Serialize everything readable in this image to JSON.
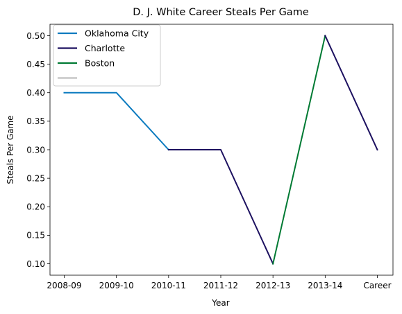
{
  "chart_data": {
    "type": "line",
    "title": "D. J. White Career Steals Per Game",
    "xlabel": "Year",
    "ylabel": "Steals Per Game",
    "categories": [
      "2008-09",
      "2009-10",
      "2010-11",
      "2011-12",
      "2012-13",
      "2013-14",
      "Career"
    ],
    "yticks": [
      "0.10",
      "0.15",
      "0.20",
      "0.25",
      "0.30",
      "0.35",
      "0.40",
      "0.45",
      "0.50"
    ],
    "ylim": [
      0.08,
      0.52
    ],
    "grid": false,
    "legend_position": "top-left",
    "series": [
      {
        "name": "Oklahoma City",
        "color": "#0a7abf",
        "points": [
          [
            0,
            0.4
          ],
          [
            1,
            0.4
          ],
          [
            2,
            0.3
          ]
        ]
      },
      {
        "name": "Charlotte",
        "color": "#1d1160",
        "points": [
          [
            2,
            0.3
          ],
          [
            3,
            0.3
          ],
          [
            4,
            0.1
          ]
        ]
      },
      {
        "name": "Boston",
        "color": "#007a33",
        "points": [
          [
            4,
            0.1
          ],
          [
            5,
            0.5
          ]
        ]
      },
      {
        "name": "",
        "color": "#bfbfbf",
        "points": []
      },
      {
        "name": "",
        "color": "#1d1160",
        "points": [
          [
            5,
            0.5
          ],
          [
            6,
            0.3
          ]
        ]
      }
    ]
  }
}
